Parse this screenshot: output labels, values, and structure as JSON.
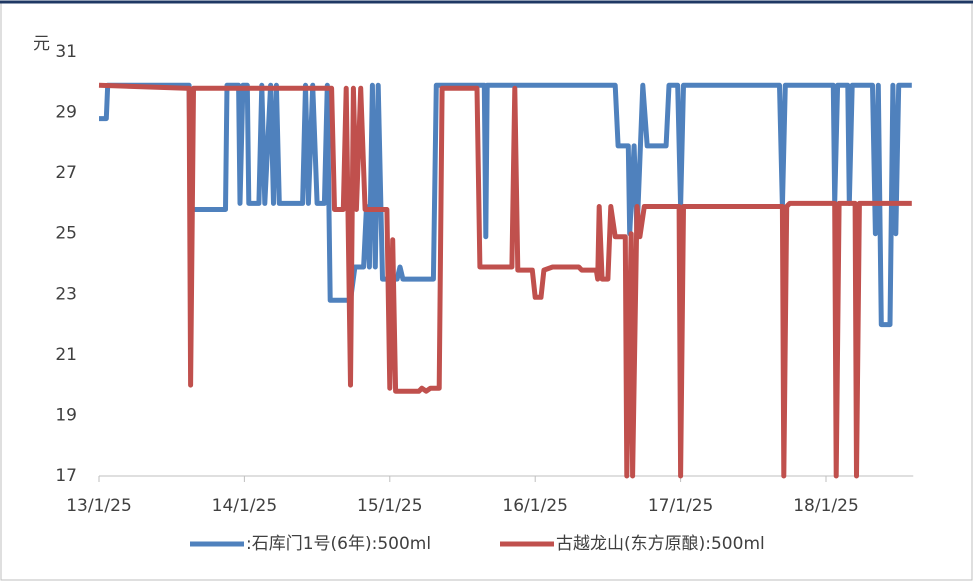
{
  "chart_data": {
    "type": "line",
    "y_label": "元",
    "xlim": [
      0,
      5.6
    ],
    "xticks": [
      {
        "value": 0,
        "label": "13/1/25"
      },
      {
        "value": 1,
        "label": "14/1/25"
      },
      {
        "value": 2,
        "label": "15/1/25"
      },
      {
        "value": 3,
        "label": "16/1/25"
      },
      {
        "value": 4,
        "label": "17/1/25"
      },
      {
        "value": 5,
        "label": "18/1/25"
      }
    ],
    "ylim": [
      17,
      31
    ],
    "yticks": [
      17,
      19,
      21,
      23,
      25,
      27,
      29,
      31
    ],
    "legend": "bottom",
    "series": [
      {
        "name": ":石库门1号(6年):500ml",
        "color": "#4f81bd",
        "x": [
          0,
          0.05,
          0.06,
          0.62,
          0.63,
          0.87,
          0.88,
          0.96,
          0.97,
          0.99,
          1.02,
          1.03,
          1.1,
          1.12,
          1.14,
          1.18,
          1.2,
          1.22,
          1.24,
          1.4,
          1.42,
          1.44,
          1.47,
          1.5,
          1.55,
          1.57,
          1.59,
          1.73,
          1.76,
          1.82,
          1.84,
          1.86,
          1.88,
          1.9,
          1.92,
          1.95,
          2.05,
          2.07,
          2.09,
          2.3,
          2.32,
          2.65,
          2.66,
          2.67,
          3.55,
          3.57,
          3.64,
          3.65,
          3.68,
          3.7,
          3.74,
          3.77,
          3.9,
          3.92,
          3.98,
          4.0,
          4.02,
          4.68,
          4.7,
          4.72,
          5.05,
          5.06,
          5.08,
          5.15,
          5.16,
          5.18,
          5.32,
          5.34,
          5.36,
          5.38,
          5.44,
          5.46,
          5.48,
          5.5,
          5.59
        ],
        "values": [
          28.8,
          28.8,
          29.9,
          29.9,
          25.8,
          25.8,
          29.9,
          29.9,
          26,
          29.9,
          29.9,
          26,
          26,
          29.9,
          26,
          29.9,
          26,
          29.9,
          26,
          26,
          29.9,
          26,
          29.9,
          26,
          26,
          29.9,
          22.8,
          22.8,
          23.9,
          23.9,
          25.9,
          23.9,
          29.9,
          23.9,
          29.9,
          23.5,
          23.5,
          23.9,
          23.5,
          23.5,
          29.9,
          29.9,
          24.9,
          29.9,
          29.9,
          27.9,
          27.9,
          25,
          27.9,
          25,
          29.9,
          27.9,
          27.9,
          29.9,
          29.9,
          25.9,
          29.9,
          29.9,
          25.9,
          29.9,
          29.9,
          26,
          29.9,
          29.9,
          26,
          29.9,
          29.9,
          25,
          29.9,
          22,
          22,
          29.9,
          25,
          29.9,
          29.9
        ]
      },
      {
        "name": "古越龙山(东方原酿):500ml",
        "color": "#c0504d",
        "x": [
          0,
          0.6,
          0.62,
          0.63,
          0.65,
          1.6,
          1.62,
          1.68,
          1.7,
          1.73,
          1.75,
          1.77,
          1.8,
          1.83,
          1.98,
          2.0,
          2.02,
          2.04,
          2.2,
          2.22,
          2.25,
          2.28,
          2.34,
          2.36,
          2.6,
          2.62,
          2.84,
          2.86,
          2.88,
          2.98,
          3.0,
          3.04,
          3.06,
          3.12,
          3.3,
          3.32,
          3.42,
          3.43,
          3.44,
          3.46,
          3.5,
          3.52,
          3.55,
          3.62,
          3.63,
          3.66,
          3.67,
          3.7,
          3.72,
          3.75,
          3.99,
          4.0,
          4.02,
          4.7,
          4.71,
          4.73,
          4.75,
          5.06,
          5.07,
          5.09,
          5.2,
          5.21,
          5.23,
          5.59
        ],
        "values": [
          29.9,
          29.8,
          29.8,
          20,
          29.8,
          29.8,
          25.8,
          25.8,
          29.8,
          20,
          29.8,
          25.8,
          29.8,
          25.8,
          25.8,
          19.9,
          24.8,
          19.8,
          19.8,
          19.9,
          19.8,
          19.9,
          19.9,
          29.8,
          29.8,
          23.9,
          23.9,
          29.8,
          23.8,
          23.8,
          22.9,
          22.9,
          23.8,
          23.9,
          23.9,
          23.8,
          23.8,
          23.5,
          25.9,
          23.5,
          23.5,
          25.9,
          24.9,
          24.9,
          17,
          25,
          17,
          25.9,
          24.9,
          25.9,
          25.9,
          17,
          25.9,
          25.9,
          17,
          25.9,
          26,
          26,
          17,
          26,
          26,
          17,
          26,
          26
        ]
      }
    ]
  }
}
